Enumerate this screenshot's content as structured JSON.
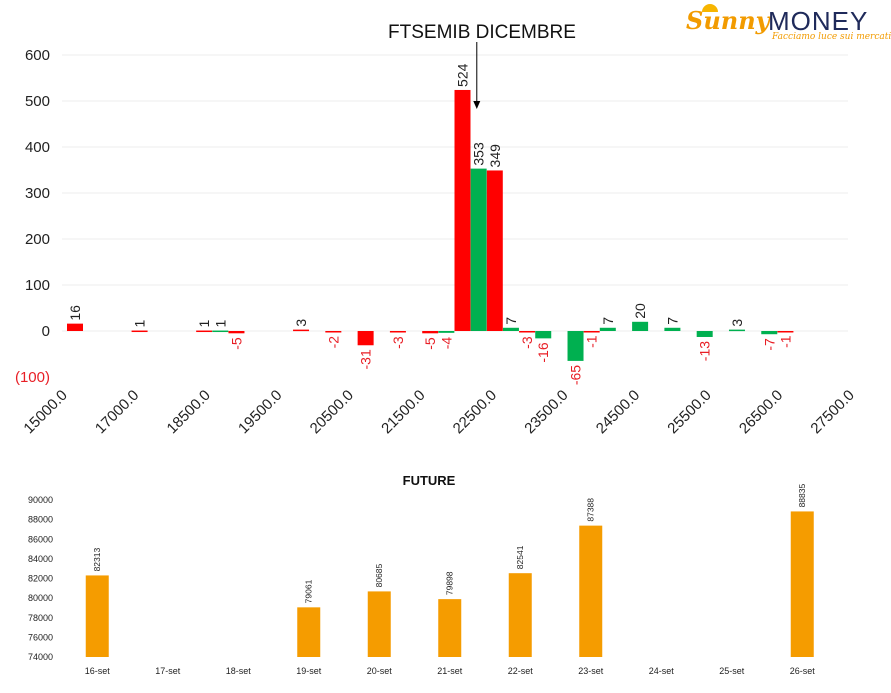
{
  "brand": {
    "name_part1": "Sunny",
    "name_part2": "MONEY",
    "tagline": "Facciamo luce sui mercati",
    "logo_icon": "sun-icon"
  },
  "colors": {
    "red": "#ff0000",
    "green": "#00b050",
    "orange": "#f59c00",
    "neg_label": "#e81e25",
    "text": "#222222"
  },
  "chart_data": [
    {
      "type": "bar",
      "title": "FTSEMIB DICEMBRE",
      "xlabel": "",
      "ylabel": "",
      "ylim": [
        -100,
        600
      ],
      "yticks": [
        -100,
        0,
        100,
        200,
        300,
        400,
        500,
        600
      ],
      "ytick_labels": [
        "(100)",
        "0",
        "100",
        "200",
        "300",
        "400",
        "500",
        "600"
      ],
      "xticks": [
        "15000.0",
        "17000.0",
        "18500.0",
        "19500.0",
        "20500.0",
        "21500.0",
        "22500.0",
        "23500.0",
        "24500.0",
        "25500.0",
        "26500.0",
        "27500.0"
      ],
      "grid": true,
      "arrow_annotation": {
        "points_to_x": 21500,
        "text": "FTSEMIB DICEMBRE"
      },
      "series": [
        {
          "color": "red",
          "points": [
            {
              "x": 15000,
              "value": 16
            },
            {
              "x": 16000,
              "value": 1
            },
            {
              "x": 17000,
              "value": 1
            },
            {
              "x": 17500,
              "value": -5
            },
            {
              "x": 18500,
              "value": 3
            },
            {
              "x": 19000,
              "value": -2
            },
            {
              "x": 19500,
              "value": -31
            },
            {
              "x": 20000,
              "value": -3
            },
            {
              "x": 20500,
              "value": -5
            },
            {
              "x": 21000,
              "value": 524
            },
            {
              "x": 21500,
              "value": 349
            },
            {
              "x": 22000,
              "value": -3
            },
            {
              "x": 23000,
              "value": -1
            },
            {
              "x": 26000,
              "value": -1
            }
          ]
        },
        {
          "color": "green",
          "points": [
            {
              "x": 17250,
              "value": 1
            },
            {
              "x": 20750,
              "value": -4
            },
            {
              "x": 21250,
              "value": 353
            },
            {
              "x": 21750,
              "value": 7
            },
            {
              "x": 22250,
              "value": -16
            },
            {
              "x": 22750,
              "value": -65
            },
            {
              "x": 23250,
              "value": 7
            },
            {
              "x": 23750,
              "value": 20
            },
            {
              "x": 24250,
              "value": 7
            },
            {
              "x": 24750,
              "value": -13
            },
            {
              "x": 25250,
              "value": 3
            },
            {
              "x": 25750,
              "value": -7
            }
          ]
        }
      ]
    },
    {
      "type": "bar",
      "title": "FUTURE",
      "xlabel": "",
      "ylabel": "",
      "ylim": [
        74000,
        90000
      ],
      "yticks": [
        74000,
        76000,
        78000,
        80000,
        82000,
        84000,
        86000,
        88000,
        90000
      ],
      "categories": [
        "16-set",
        "17-set",
        "18-set",
        "19-set",
        "20-set",
        "21-set",
        "22-set",
        "23-set",
        "24-set",
        "25-set",
        "26-set"
      ],
      "values": [
        82313,
        null,
        null,
        79061,
        80685,
        79898,
        82541,
        87388,
        null,
        null,
        88835
      ],
      "grid": false,
      "color": "orange"
    }
  ]
}
